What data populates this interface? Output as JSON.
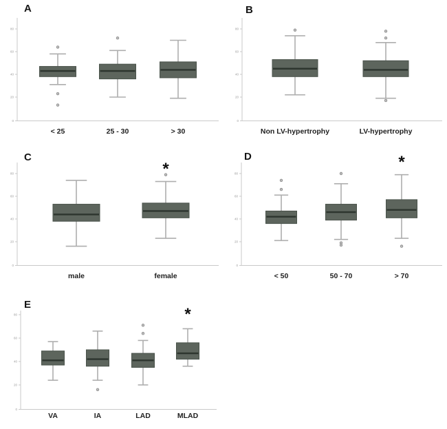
{
  "figure": {
    "background": "#ffffff",
    "box_fill": "#5d655d",
    "box_border": "#49524a",
    "median_color": "#2d352e",
    "whisker_color": "#aeaeae",
    "axis_color": "#c9c9c9",
    "tick_label_color": "#9a9a9a",
    "outlier_stroke": "#8a8a8a",
    "outlier_fill": "#bdbdbd",
    "label_color": "#212121",
    "significance_marker": "*"
  },
  "chart_data": [
    {
      "type": "boxplot",
      "panel": "A",
      "categories": [
        "< 25",
        "25 - 30",
        "> 30"
      ],
      "ylim": [
        0,
        88
      ],
      "yticks": [
        0,
        20,
        40,
        60,
        80
      ],
      "xlabel": "",
      "ylabel": "",
      "series": [
        {
          "category": "< 25",
          "min": 31,
          "q1": 38,
          "median": 43,
          "q3": 47,
          "max": 58,
          "outliers": [
            64,
            23,
            13
          ],
          "significant": false
        },
        {
          "category": "25 - 30",
          "min": 20,
          "q1": 36,
          "median": 43,
          "q3": 49,
          "max": 61,
          "outliers": [
            72
          ],
          "significant": false
        },
        {
          "category": "> 30",
          "min": 19,
          "q1": 37,
          "median": 44,
          "q3": 51,
          "max": 70,
          "outliers": [],
          "significant": false
        }
      ]
    },
    {
      "type": "boxplot",
      "panel": "B",
      "categories": [
        "Non LV-hypertrophy",
        "LV-hypertrophy"
      ],
      "ylim": [
        0,
        88
      ],
      "yticks": [
        0,
        20,
        40,
        60,
        80
      ],
      "xlabel": "",
      "ylabel": "",
      "series": [
        {
          "category": "Non LV-hypertrophy",
          "min": 22,
          "q1": 38,
          "median": 45,
          "q3": 53,
          "max": 74,
          "outliers": [
            79
          ],
          "significant": false
        },
        {
          "category": "LV-hypertrophy",
          "min": 19,
          "q1": 38,
          "median": 44,
          "q3": 52,
          "max": 68,
          "outliers": [
            78,
            72,
            17
          ],
          "significant": false
        }
      ]
    },
    {
      "type": "boxplot",
      "panel": "C",
      "categories": [
        "male",
        "female"
      ],
      "ylim": [
        0,
        88
      ],
      "yticks": [
        0,
        20,
        40,
        60,
        80
      ],
      "xlabel": "",
      "ylabel": "",
      "series": [
        {
          "category": "male",
          "min": 16,
          "q1": 38,
          "median": 44,
          "q3": 53,
          "max": 74,
          "outliers": [],
          "significant": false
        },
        {
          "category": "female",
          "min": 23,
          "q1": 41,
          "median": 47,
          "q3": 54,
          "max": 73,
          "outliers": [
            79
          ],
          "significant": true
        }
      ]
    },
    {
      "type": "boxplot",
      "panel": "D",
      "categories": [
        "< 50",
        "50 - 70",
        "> 70"
      ],
      "ylim": [
        0,
        88
      ],
      "yticks": [
        0,
        20,
        40,
        60,
        80
      ],
      "xlabel": "",
      "ylabel": "",
      "series": [
        {
          "category": "< 50",
          "min": 21,
          "q1": 36,
          "median": 42,
          "q3": 47,
          "max": 61,
          "outliers": [
            74,
            66
          ],
          "significant": false
        },
        {
          "category": "50 - 70",
          "min": 22,
          "q1": 39,
          "median": 46,
          "q3": 53,
          "max": 71,
          "outliers": [
            80,
            19,
            17
          ],
          "significant": false
        },
        {
          "category": "> 70",
          "min": 23,
          "q1": 41,
          "median": 48,
          "q3": 57,
          "max": 79,
          "outliers": [
            16
          ],
          "significant": true
        }
      ]
    },
    {
      "type": "boxplot",
      "panel": "E",
      "categories": [
        "VA",
        "IA",
        "LAD",
        "MLAD"
      ],
      "ylim": [
        0,
        88
      ],
      "yticks": [
        0,
        20,
        40,
        60,
        80
      ],
      "xlabel": "",
      "ylabel": "",
      "series": [
        {
          "category": "VA",
          "min": 24,
          "q1": 37,
          "median": 41,
          "q3": 49,
          "max": 57,
          "outliers": [],
          "significant": false
        },
        {
          "category": "IA",
          "min": 24,
          "q1": 36,
          "median": 42,
          "q3": 50,
          "max": 66,
          "outliers": [
            16
          ],
          "significant": false
        },
        {
          "category": "LAD",
          "min": 20,
          "q1": 35,
          "median": 41,
          "q3": 47,
          "max": 58,
          "outliers": [
            71,
            64
          ],
          "significant": false
        },
        {
          "category": "MLAD",
          "min": 36,
          "q1": 42,
          "median": 47,
          "q3": 56,
          "max": 68,
          "outliers": [],
          "significant": true
        }
      ]
    }
  ]
}
